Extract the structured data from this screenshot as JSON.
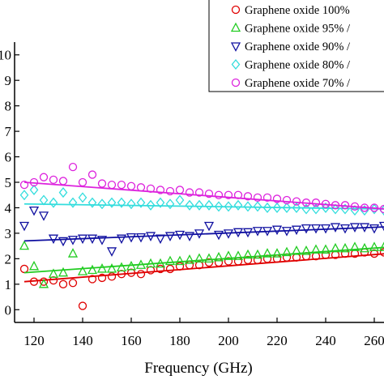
{
  "chart_data": {
    "type": "scatter",
    "x_label": "Frequency (GHz)",
    "xlim": [
      112,
      265
    ],
    "xticks": [
      120,
      140,
      160,
      180,
      200,
      220,
      240,
      260
    ],
    "ylim": [
      -0.5,
      10.5
    ],
    "yticks": [
      0,
      1,
      2,
      3,
      4,
      5,
      6,
      7,
      8,
      9,
      10
    ],
    "x": [
      116,
      120,
      124,
      128,
      132,
      136,
      140,
      144,
      148,
      152,
      156,
      160,
      164,
      168,
      172,
      176,
      180,
      184,
      188,
      192,
      196,
      200,
      204,
      208,
      212,
      216,
      220,
      224,
      228,
      232,
      236,
      240,
      244,
      248,
      252,
      256,
      260,
      264
    ],
    "fit_x": [
      116,
      265
    ],
    "series": [
      {
        "name": "Graphene oxide 100%",
        "color": "#e00000",
        "marker": "circle",
        "fit": [
          1.1,
          2.2
        ],
        "values": [
          1.6,
          1.1,
          1.1,
          1.15,
          1.0,
          1.05,
          0.15,
          1.2,
          1.25,
          1.3,
          1.4,
          1.45,
          1.4,
          1.55,
          1.6,
          1.6,
          1.7,
          1.75,
          1.75,
          1.85,
          1.85,
          1.9,
          1.9,
          1.95,
          1.95,
          2.0,
          2.0,
          2.05,
          2.05,
          2.1,
          2.1,
          2.15,
          2.15,
          2.2,
          2.2,
          2.25,
          2.2,
          2.25
        ]
      },
      {
        "name": "Graphene oxide 95% /",
        "color": "#22cc22",
        "marker": "triangle-up",
        "fit": [
          1.45,
          2.45
        ],
        "values": [
          2.5,
          1.7,
          1.0,
          1.4,
          1.45,
          2.2,
          1.5,
          1.55,
          1.6,
          1.6,
          1.65,
          1.7,
          1.75,
          1.8,
          1.8,
          1.9,
          1.9,
          1.95,
          2.0,
          2.0,
          2.05,
          2.1,
          2.1,
          2.15,
          2.15,
          2.2,
          2.2,
          2.25,
          2.3,
          2.3,
          2.35,
          2.35,
          2.4,
          2.4,
          2.45,
          2.4,
          2.45,
          2.45
        ]
      },
      {
        "name": "Graphene oxide 90% /",
        "color": "#1010a0",
        "marker": "triangle-down",
        "fit": [
          2.7,
          3.25
        ],
        "values": [
          3.3,
          3.9,
          3.7,
          2.8,
          2.7,
          2.75,
          2.8,
          2.8,
          2.75,
          2.3,
          2.8,
          2.85,
          2.85,
          2.9,
          2.8,
          2.9,
          2.95,
          2.9,
          3.0,
          3.3,
          2.95,
          3.0,
          3.05,
          3.05,
          3.1,
          3.1,
          3.15,
          3.1,
          3.15,
          3.2,
          3.2,
          3.2,
          3.25,
          3.2,
          3.25,
          3.25,
          3.2,
          3.3
        ]
      },
      {
        "name": "Graphene oxide 80% /",
        "color": "#33dddd",
        "marker": "diamond",
        "fit": [
          4.15,
          3.95
        ],
        "values": [
          4.5,
          4.7,
          4.3,
          4.2,
          4.6,
          4.2,
          4.4,
          4.2,
          4.15,
          4.2,
          4.2,
          4.15,
          4.2,
          4.1,
          4.2,
          4.15,
          4.3,
          4.1,
          4.1,
          4.1,
          4.05,
          4.05,
          4.1,
          4.05,
          4.05,
          4.0,
          4.0,
          4.0,
          4.0,
          3.95,
          3.95,
          4.0,
          3.95,
          3.95,
          3.9,
          3.9,
          3.95,
          3.9
        ]
      },
      {
        "name": "Graphene oxide 70% /",
        "color": "#dd22dd",
        "marker": "circle",
        "fit": [
          5.0,
          3.95
        ],
        "values": [
          4.9,
          5.0,
          5.2,
          5.1,
          5.05,
          5.6,
          5.0,
          5.3,
          4.95,
          4.9,
          4.9,
          4.85,
          4.8,
          4.75,
          4.7,
          4.65,
          4.7,
          4.6,
          4.6,
          4.55,
          4.5,
          4.5,
          4.5,
          4.45,
          4.4,
          4.4,
          4.35,
          4.3,
          4.25,
          4.2,
          4.2,
          4.15,
          4.1,
          4.1,
          4.05,
          4.0,
          4.0,
          3.95
        ]
      }
    ]
  }
}
